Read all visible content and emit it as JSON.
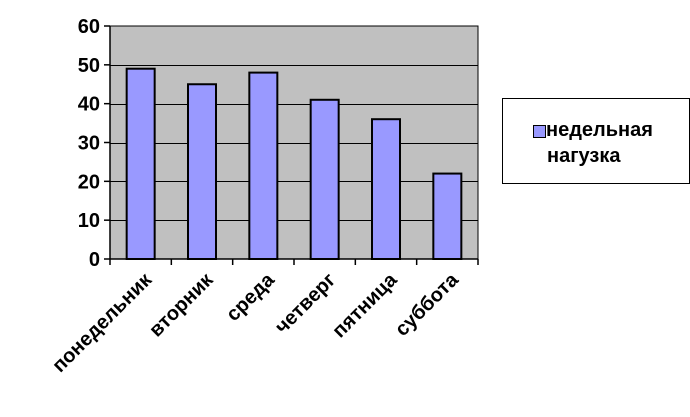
{
  "colors": {
    "plot_background": "#c0c0c0",
    "bar_fill": "#9999ff",
    "bar_stroke": "#000000",
    "gridline": "#000000"
  },
  "chart_data": {
    "type": "bar",
    "categories": [
      "понедельник",
      "вторник",
      "среда",
      "четверг",
      "пятница",
      "суббота"
    ],
    "series": [
      {
        "name": "недельная нагузка",
        "values": [
          49,
          45,
          48,
          41,
          36,
          22
        ]
      }
    ],
    "y_ticks": [
      "0",
      "10",
      "20",
      "30",
      "40",
      "50",
      "60"
    ],
    "ylim": [
      0,
      60
    ],
    "grid": true,
    "legend_position": "right"
  },
  "legend": {
    "line1": "недельная",
    "line2": "нагузка"
  }
}
